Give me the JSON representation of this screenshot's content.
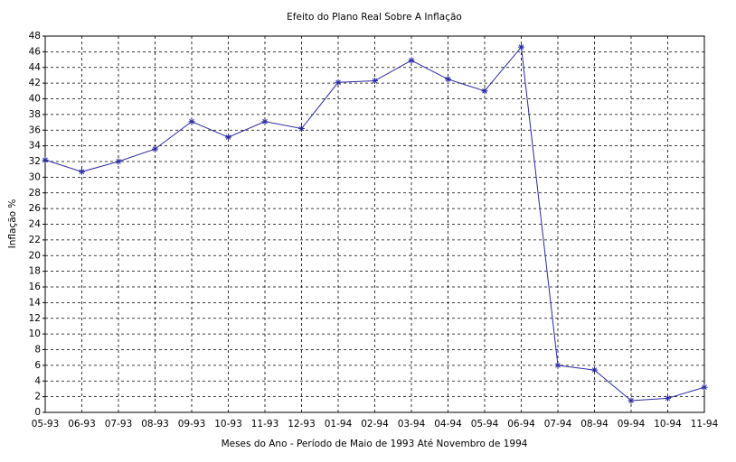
{
  "chart_data": {
    "type": "line",
    "title": "Efeito do Plano Real Sobre A Inflação",
    "x_label": "Meses do Ano - Período de Maio de 1993 Até Novembro de 1994",
    "y_label": "Inflação %",
    "categories": [
      "05-93",
      "06-93",
      "07-93",
      "08-93",
      "09-93",
      "10-93",
      "11-93",
      "12-93",
      "01-94",
      "02-94",
      "03-94",
      "04-94",
      "05-94",
      "06-94",
      "07-94",
      "08-94",
      "09-94",
      "10-94",
      "11-94"
    ],
    "values": [
      32.2,
      30.7,
      32.0,
      33.6,
      37.1,
      35.1,
      37.1,
      36.2,
      42.1,
      42.3,
      44.9,
      42.5,
      41.0,
      46.6,
      6.0,
      5.4,
      1.5,
      1.8,
      3.2
    ],
    "color": "#2a2aa0",
    "ylim": [
      0,
      48
    ],
    "yticks": [
      0,
      2,
      4,
      6,
      8,
      10,
      12,
      14,
      16,
      18,
      20,
      22,
      24,
      26,
      28,
      30,
      32,
      34,
      36,
      38,
      40,
      42,
      44,
      46,
      48
    ],
    "grid": true
  }
}
